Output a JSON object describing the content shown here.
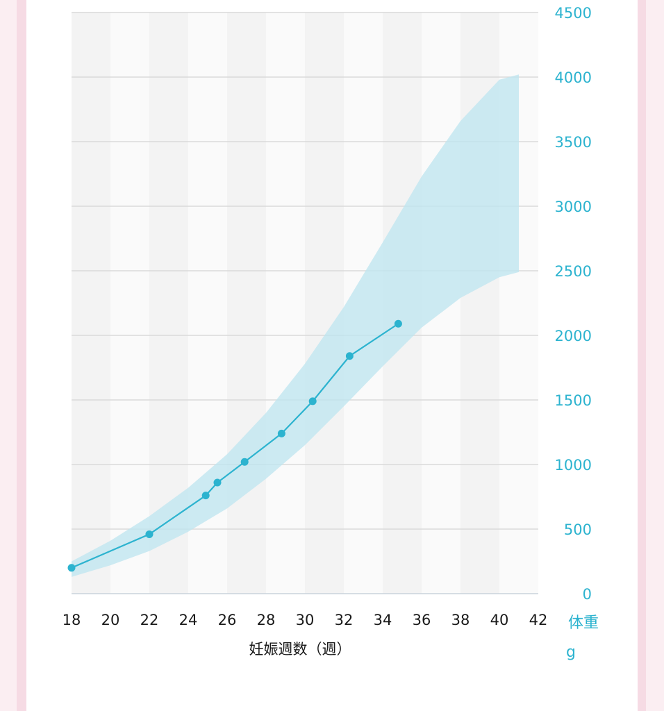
{
  "colors": {
    "accent": "#2cb3cf",
    "band_fill": "#bfe6f0",
    "grid": "#d9d9d9",
    "stripe_a": "#f3f3f3",
    "stripe_b": "#fafafa",
    "page_bg": "#fbeef2",
    "border_pink": "#f6dbe4"
  },
  "chart_data": {
    "type": "line",
    "xlabel": "妊娠週数（週）",
    "ylabel": "体重",
    "yunit": "g",
    "xlim": [
      18,
      42
    ],
    "ylim": [
      0,
      4500
    ],
    "x_ticks": [
      "18",
      "20",
      "22",
      "24",
      "26",
      "28",
      "30",
      "32",
      "34",
      "36",
      "38",
      "40",
      "42"
    ],
    "y_ticks": [
      "0",
      "500",
      "1000",
      "1500",
      "2000",
      "2500",
      "3000",
      "3500",
      "4000",
      "4500"
    ],
    "grid": "horizontal",
    "background_stripes": "alternating per 2 weeks",
    "series": [
      {
        "x": [
          18,
          22,
          24.9,
          25.5,
          26.9,
          28.8,
          30.4,
          32.3,
          34.8
        ],
        "y": [
          200,
          460,
          760,
          860,
          1020,
          1240,
          1490,
          1840,
          2090
        ]
      }
    ],
    "reference_band": {
      "x": [
        18,
        20,
        22,
        24,
        26,
        28,
        30,
        32,
        34,
        36,
        38,
        40,
        41
      ],
      "upper": [
        250,
        410,
        600,
        820,
        1080,
        1400,
        1780,
        2220,
        2720,
        3230,
        3660,
        3980,
        4020
      ],
      "lower": [
        130,
        220,
        330,
        480,
        660,
        890,
        1150,
        1450,
        1760,
        2060,
        2290,
        2450,
        2490
      ]
    }
  }
}
